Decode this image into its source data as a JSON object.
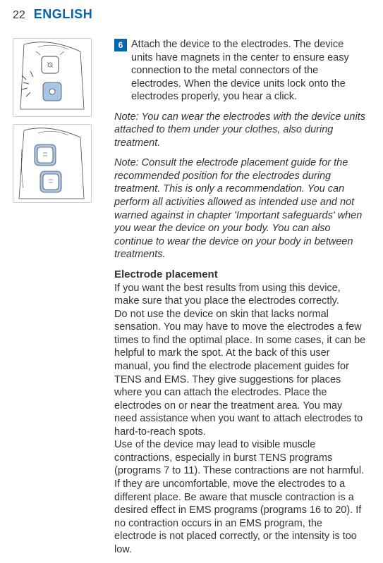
{
  "header": {
    "page_number": "22",
    "language": "ENGLISH"
  },
  "step": {
    "number": "6",
    "text": "Attach the device to the electrodes. The device units have magnets in the center to ensure easy connection to the metal connectors of the electrodes. When the device units lock onto the electrodes properly, you hear a click."
  },
  "note1": "Note: You can wear the electrodes with the device units attached to them under your clothes, also during treatment.",
  "note2": "Note: Consult the electrode placement guide for the recommended position for the electrodes during treatment. This is only a recommendation. You can perform all activities allowed as intended use and not warned against in chapter 'Important safeguards' when you wear the device on your body. You can also continue to wear the device on your body in between treatments.",
  "section": {
    "title": "Electrode placement",
    "body": "If you want the best results from using this device, make sure that you place the electrodes correctly.\nDo not use the device on skin that lacks normal sensation. You may have to move the electrodes a few times to find the optimal place. In some cases, it can be helpful to mark the spot. At the back of this user manual, you find the electrode placement guides for TENS and EMS. They give suggestions for places where you can attach the electrodes. Place the electrodes on or near the treatment area. You may need assistance when you want to attach electrodes to hard-to-reach spots.\nUse of the device may lead to visible muscle contractions, especially in burst TENS programs (programs 7 to 11). These contractions are not harmful. If they are uncomfortable, move the electrodes to a different place. Be aware that muscle contraction is a desired effect in EMS programs (programs 16 to 20). If no contraction occurs in an EMS program, the electrode is not placed correctly, or the intensity is too low."
  },
  "colors": {
    "accent": "#0066b3",
    "text": "#333333",
    "border": "#cccccc",
    "electrode_fill": "#a8c5e8",
    "line": "#4a4a4a"
  },
  "diagram1": {
    "motion_lines": true,
    "click_marks": true
  },
  "diagram2": {
    "electrodes_attached": true
  }
}
